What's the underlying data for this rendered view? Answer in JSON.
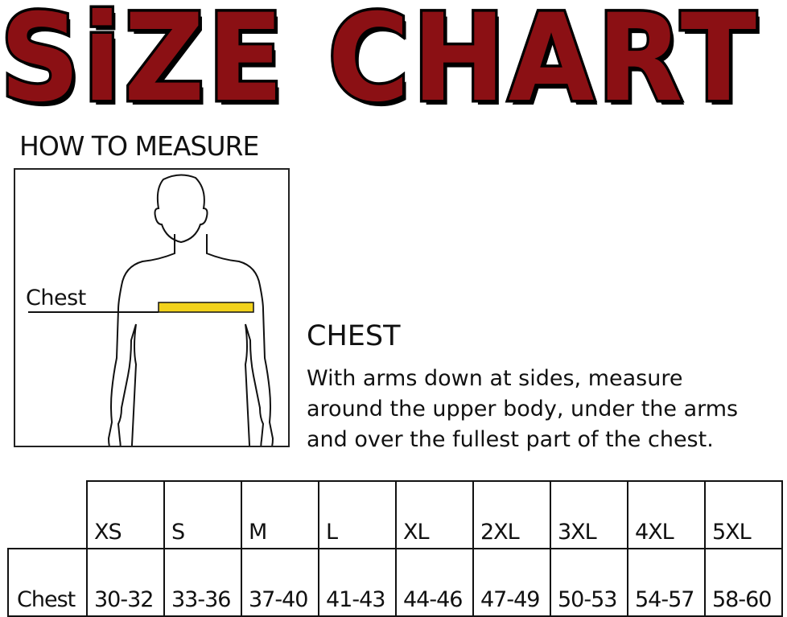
{
  "title": "SiZE CHART",
  "how_to_measure": "HOW TO MEASURE",
  "figure": {
    "label": "Chest",
    "tape_color": "#f2d21c"
  },
  "instructions": {
    "heading": "CHEST",
    "lines": [
      "With arms down at sides, measure",
      "around the upper body, under the arms",
      "and over the fullest part of the chest."
    ]
  },
  "table": {
    "sizes": [
      "XS",
      "S",
      "M",
      "L",
      "XL",
      "2XL",
      "3XL",
      "4XL",
      "5XL"
    ],
    "row_label": "Chest",
    "values": [
      "30-32",
      "33-36",
      "37-40",
      "41-43",
      "44-46",
      "47-49",
      "50-53",
      "54-57",
      "58-60"
    ]
  },
  "colors": {
    "title_fill": "#8b1014",
    "title_outline": "#000000"
  }
}
